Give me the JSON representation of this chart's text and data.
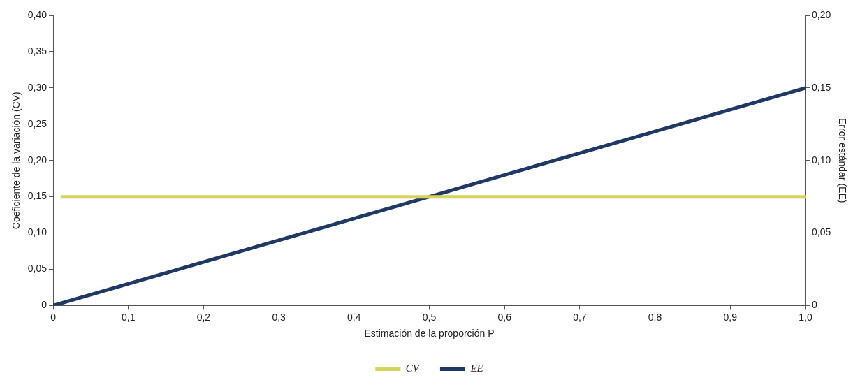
{
  "chart_data": {
    "type": "line",
    "xlabel": "Estimación de la proporción P",
    "ylabel": "Coeficiente de la variación (CV)",
    "y2label": "Error estándar (EE)",
    "series": [
      {
        "name": "CV",
        "color": "#d4d45a",
        "x": [
          0.01,
          1.0
        ],
        "values": [
          0.15,
          0.15
        ]
      },
      {
        "name": "EE",
        "color": "#1f3864",
        "x": [
          0,
          1.0
        ],
        "values": [
          0,
          0.15
        ],
        "axis": "y2"
      }
    ],
    "xlim": [
      0,
      1.0
    ],
    "xticks": [
      0,
      {
        "value": 0.1,
        "label": "0,1"
      },
      {
        "value": 0.2,
        "label": "0,2"
      },
      {
        "value": 0.3,
        "label": "0,3"
      },
      {
        "value": 0.4,
        "label": "0,4"
      },
      {
        "value": 0.5,
        "label": "0,5"
      },
      {
        "value": 0.6,
        "label": "0,6"
      },
      {
        "value": 0.7,
        "label": "0,7"
      },
      {
        "value": 0.8,
        "label": "0,8"
      },
      {
        "value": 0.9,
        "label": "0,9"
      },
      {
        "value": 1.0,
        "label": "1,0"
      }
    ],
    "ylim": [
      0,
      0.4
    ],
    "yticks": [
      0,
      {
        "value": 0.05,
        "label": "0,05"
      },
      {
        "value": 0.1,
        "label": "0,10"
      },
      {
        "value": 0.15,
        "label": "0,15"
      },
      {
        "value": 0.2,
        "label": "0,20"
      },
      {
        "value": 0.25,
        "label": "0,25"
      },
      {
        "value": 0.3,
        "label": "0,30"
      },
      {
        "value": 0.35,
        "label": "0,35"
      },
      {
        "value": 0.4,
        "label": "0,40"
      }
    ],
    "y2lim": [
      0,
      0.2
    ],
    "y2ticks": [
      0,
      {
        "value": 0.05,
        "label": "0,05"
      },
      {
        "value": 0.1,
        "label": "0,10"
      },
      {
        "value": 0.15,
        "label": "0,15"
      },
      {
        "value": 0.2,
        "label": "0,20"
      }
    ],
    "grid": false,
    "legend": "bottom",
    "marker": "none",
    "line_style": "solid"
  }
}
